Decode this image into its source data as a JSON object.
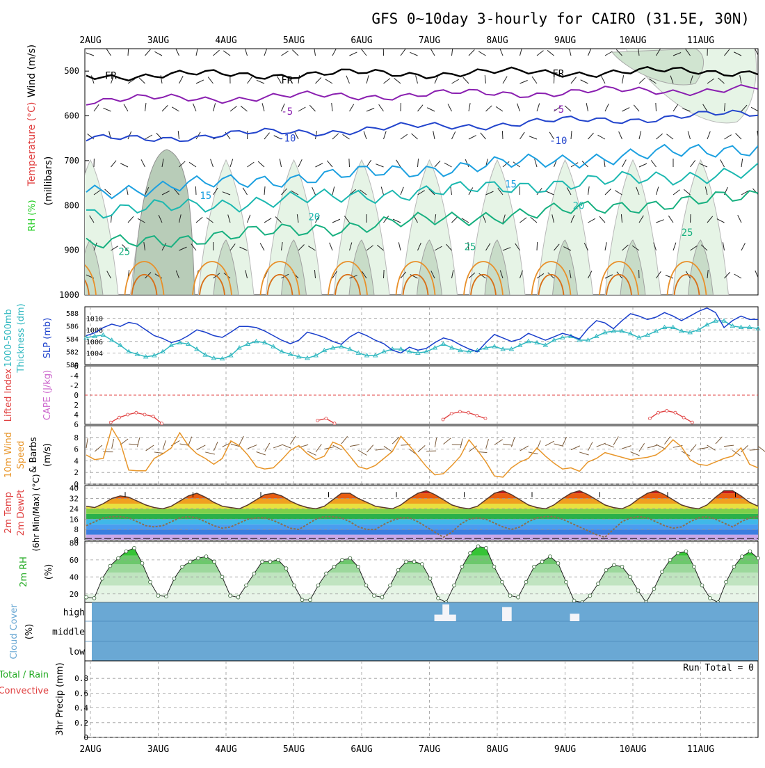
{
  "title": "GFS 0~10day 3-hourly for CAIRO (31.5E, 30N)",
  "colors": {
    "temp": "#e04040",
    "wind_label": "#800080",
    "rh_green": "#22cc22",
    "slp": "#1a3fcc",
    "thickness": "#30b8c0",
    "cape": "#cc66cc",
    "lifted": "#e04040",
    "wind10": "#e8962a",
    "barbs": "#7a5a3a",
    "rh2m": "#22aa22",
    "cloud": "#6aa8d4",
    "precip_total": "#22aa22",
    "precip_conv": "#e04040"
  },
  "chart_data": [
    {
      "type": "line",
      "panel": "upper-air",
      "ylabel_parts": [
        "RH (%)",
        "Temperature (°C)",
        "Wind (m/s)",
        "(millibars)"
      ],
      "y_ticks": [
        "500",
        "600",
        "700",
        "800",
        "900",
        "1000"
      ],
      "ylim": [
        1000,
        450
      ],
      "x_labels": [
        "2AUG",
        "3AUG",
        "4AUG",
        "5AUG",
        "6AUG",
        "7AUG",
        "8AUG",
        "9AUG",
        "10AUG",
        "11AUG"
      ],
      "contour_labels": [
        {
          "text": "FR",
          "x": 0.3,
          "p": 510
        },
        {
          "text": "FR",
          "x": 2.9,
          "p": 520
        },
        {
          "text": "FR",
          "x": 6.9,
          "p": 505
        },
        {
          "text": "-5",
          "x": 2.9,
          "p": 590
        },
        {
          "text": "-5",
          "x": 6.9,
          "p": 585
        },
        {
          "text": "-10",
          "x": 2.9,
          "p": 650
        },
        {
          "text": "-10",
          "x": 6.9,
          "p": 655
        },
        {
          "text": "15",
          "x": 1.7,
          "p": 778
        },
        {
          "text": "15",
          "x": 6.2,
          "p": 752
        },
        {
          "text": "20",
          "x": 3.3,
          "p": 825
        },
        {
          "text": "20",
          "x": 7.2,
          "p": 800
        },
        {
          "text": "25",
          "x": 0.5,
          "p": 903
        },
        {
          "text": "25",
          "x": 5.6,
          "p": 892
        },
        {
          "text": "25",
          "x": 8.8,
          "p": 860
        }
      ],
      "isotherms": [
        {
          "name": "FR",
          "p_start": 510,
          "p_end": 500
        },
        {
          "name": "-5",
          "p_start": 565,
          "p_end": 540
        },
        {
          "name": "-10",
          "p_start": 655,
          "p_end": 595
        },
        {
          "name": "15",
          "p_start": 770,
          "p_end": 670
        },
        {
          "name": "20",
          "p_start": 815,
          "p_end": 725
        },
        {
          "name": "25",
          "p_start": 890,
          "p_end": 780
        }
      ]
    },
    {
      "type": "line",
      "panel": "slp-thickness",
      "ylabel_parts": [
        "1000-500mb",
        "Thickness (dm)",
        "SLP (mb)"
      ],
      "left_ticks": [
        "580",
        "582",
        "584",
        "586",
        "588"
      ],
      "right_ticks": [
        "1004",
        "1006",
        "1008",
        "1010"
      ],
      "series": [
        {
          "name": "SLP",
          "values": [
            1007,
            1007.5,
            1008.4,
            1009,
            1008.6,
            1009.3,
            1009,
            1008,
            1007,
            1006.5,
            1005.8,
            1006.2,
            1007,
            1008,
            1007.6,
            1007,
            1006.7,
            1007.6,
            1008.6,
            1008.6,
            1008.4,
            1007.8,
            1007,
            1006.2,
            1005.6,
            1006.2,
            1007.6,
            1007.2,
            1006.7,
            1006,
            1005.5,
            1006.8,
            1007.6,
            1007,
            1006.2,
            1005.6,
            1004.5,
            1004,
            1005,
            1004.5,
            1004.8,
            1005.8,
            1006.6,
            1006.2,
            1005.4,
            1004.7,
            1004.2,
            1005.8,
            1007.2,
            1006.6,
            1006,
            1006.4,
            1007.4,
            1006.8,
            1006.2,
            1006.8,
            1007.4,
            1007,
            1006.4,
            1008.2,
            1009.6,
            1009.2,
            1008.2,
            1009.6,
            1010.8,
            1010.4,
            1009.8,
            1010.2,
            1011,
            1010.4,
            1009.6,
            1010.4,
            1011.2,
            1011.8,
            1011,
            1008.4,
            1009.6,
            1010.4,
            1009.8,
            1009.8
          ]
        },
        {
          "name": "Thickness",
          "values": [
            584.2,
            584.4,
            584.6,
            583.8,
            583.0,
            582.0,
            581.6,
            581.2,
            581.4,
            582.0,
            583.0,
            583.4,
            583.2,
            582.4,
            581.5,
            581.0,
            580.9,
            581.4,
            582.6,
            583.2,
            583.6,
            583.4,
            582.8,
            582.0,
            581.6,
            581.2,
            581.0,
            581.4,
            582.2,
            582.6,
            582.8,
            582.4,
            581.8,
            581.4,
            581.4,
            582.0,
            582.4,
            582.4,
            582.0,
            581.8,
            582.0,
            582.6,
            583.2,
            582.6,
            582.2,
            582.0,
            582.2,
            582.6,
            582.8,
            582.4,
            582.4,
            583.0,
            583.6,
            583.4,
            583.0,
            583.8,
            584.2,
            584.4,
            583.8,
            583.8,
            584.4,
            585.0,
            585.2,
            585.2,
            584.8,
            584.2,
            584.6,
            585.2,
            585.8,
            585.8,
            585.2,
            585.0,
            585.4,
            586.2,
            586.8,
            586.8,
            586.0,
            585.8,
            585.8,
            585.6
          ]
        }
      ]
    },
    {
      "type": "line",
      "panel": "cape-lifted-index",
      "ylabel_parts": [
        "CAPE (J/kg)",
        "Lifted Index"
      ],
      "left_ticks": [
        "-6",
        "-4",
        "-2",
        "0",
        "2",
        "4",
        "6"
      ],
      "lifted_index_episodes": [
        {
          "values": [
            5.6,
            4.6,
            4.0,
            3.6,
            4.0,
            4.4,
            5.8
          ]
        },
        {
          "values": [
            5.2,
            4.8,
            5.8
          ]
        },
        {
          "values": [
            5.0,
            3.8,
            3.4,
            3.6,
            4.2,
            4.8
          ]
        },
        {
          "values": [
            4.8,
            3.6,
            3.2,
            3.6,
            4.6,
            5.6
          ]
        }
      ]
    },
    {
      "type": "line",
      "panel": "10m-wind",
      "ylabel_parts": [
        "10m Wind",
        "Speed",
        "& Barbs",
        "(m/s)"
      ],
      "left_ticks": [
        "0",
        "2",
        "4",
        "6",
        "8"
      ],
      "series": [
        {
          "name": "10m wind speed",
          "values": [
            5,
            4.2,
            4.4,
            9.6,
            7.2,
            2.4,
            2.3,
            2.3,
            4.4,
            5.2,
            6.2,
            8.8,
            6.6,
            5.2,
            4.4,
            3.4,
            4.4,
            7.4,
            6.6,
            5,
            3,
            2.6,
            2.8,
            4.2,
            5.8,
            6.6,
            5.2,
            4.2,
            4.8,
            7.2,
            6.6,
            4.8,
            3,
            2.6,
            3.2,
            4.4,
            5.6,
            8.2,
            6.6,
            4.8,
            3,
            1.6,
            1.8,
            3.2,
            4.8,
            7.6,
            5.8,
            3.8,
            1.4,
            1.2,
            2.8,
            3.8,
            4.4,
            6.2,
            4.8,
            3.6,
            2.6,
            2.8,
            2.2,
            3.8,
            4.4,
            5.4,
            5.0,
            4.6,
            4.2,
            4.4,
            4.6,
            5,
            6,
            7.6,
            6.4,
            4.2,
            3.4,
            3.2,
            3.8,
            4.4,
            4.8,
            6.2,
            3.4,
            2.8
          ]
        }
      ]
    },
    {
      "type": "area",
      "panel": "2m-temp",
      "ylabel_parts": [
        "2m Temp",
        "2m DewPt",
        "(6hr Min/Max) (°C)"
      ],
      "left_ticks": [
        "0",
        "8",
        "16",
        "24",
        "32",
        "40"
      ],
      "series": [
        {
          "name": "2m Temp",
          "values": [
            26,
            25,
            28,
            32,
            34,
            33,
            30,
            27,
            25,
            24,
            26,
            30,
            34,
            36,
            33,
            29,
            26,
            25,
            24,
            27,
            31,
            35,
            36,
            34,
            30,
            27,
            25,
            24,
            26,
            31,
            36,
            36,
            32,
            29,
            26,
            25,
            24,
            27,
            32,
            36,
            38,
            35,
            31,
            27,
            25,
            24,
            26,
            31,
            36,
            38,
            35,
            31,
            27,
            25,
            24,
            27,
            32,
            36,
            38,
            35,
            31,
            27,
            25,
            24,
            27,
            32,
            36,
            38,
            35,
            31,
            27,
            25,
            24,
            27,
            33,
            38,
            38,
            34,
            29,
            26
          ]
        },
        {
          "name": "2m DewPt",
          "values": [
            11,
            14,
            17,
            18,
            18,
            17,
            14,
            11,
            10,
            11,
            14,
            17,
            18,
            17,
            14,
            11,
            9,
            10,
            13,
            16,
            17,
            17,
            15,
            12,
            9,
            8,
            12,
            16,
            18,
            18,
            17,
            14,
            10,
            8,
            8,
            12,
            15,
            17,
            17,
            14,
            10,
            6,
            2,
            6,
            12,
            16,
            17,
            16,
            13,
            10,
            8,
            10,
            14,
            17,
            18,
            18,
            16,
            13,
            10,
            7,
            4,
            2,
            8,
            14,
            17,
            18,
            17,
            14,
            11,
            9,
            10,
            14,
            17,
            18,
            16,
            13,
            10,
            14,
            17,
            18
          ]
        }
      ]
    },
    {
      "type": "area",
      "panel": "2m-rh",
      "ylabel_parts": [
        "2m RH",
        "(%)"
      ],
      "left_ticks": [
        "20",
        "40",
        "60",
        "80"
      ],
      "series": [
        {
          "name": "2m RH",
          "values": [
            16,
            15,
            38,
            53,
            62,
            70,
            74,
            56,
            34,
            18,
            17,
            38,
            52,
            58,
            62,
            64,
            58,
            40,
            18,
            16,
            30,
            44,
            58,
            58,
            60,
            50,
            30,
            13,
            13,
            30,
            44,
            52,
            60,
            62,
            52,
            30,
            18,
            16,
            30,
            48,
            58,
            58,
            55,
            38,
            15,
            10,
            30,
            52,
            68,
            76,
            74,
            52,
            34,
            18,
            16,
            34,
            52,
            58,
            64,
            56,
            34,
            12,
            10,
            18,
            32,
            48,
            54,
            52,
            40,
            24,
            10,
            26,
            46,
            60,
            68,
            70,
            52,
            30,
            15,
            10,
            34,
            52,
            64,
            70,
            62
          ]
        }
      ]
    },
    {
      "type": "bar",
      "panel": "cloud-cover",
      "ylabel_parts": [
        "Cloud Cover",
        "(%)"
      ],
      "layers": [
        "high",
        "middle",
        "low"
      ],
      "gaps": [
        {
          "layer": "high",
          "x0": 4.58,
          "x1": 4.9,
          "frac": 0.35
        },
        {
          "layer": "high",
          "x0": 4.7,
          "x1": 4.8,
          "frac": 0.9
        },
        {
          "layer": "high",
          "x0": 5.58,
          "x1": 5.72,
          "frac": 0.75
        },
        {
          "layer": "high",
          "x0": 6.58,
          "x1": 6.72,
          "frac": 0.4
        }
      ]
    },
    {
      "type": "bar",
      "panel": "precip",
      "ylabel_parts": [
        "Total / Rain",
        "Convective",
        "3hr Precip (mm)"
      ],
      "left_ticks": [
        "0",
        "0.2",
        "0.4",
        "0.6",
        "0.8"
      ],
      "ylim": [
        0,
        1
      ],
      "run_total": "Run Total = 0",
      "values": []
    }
  ]
}
